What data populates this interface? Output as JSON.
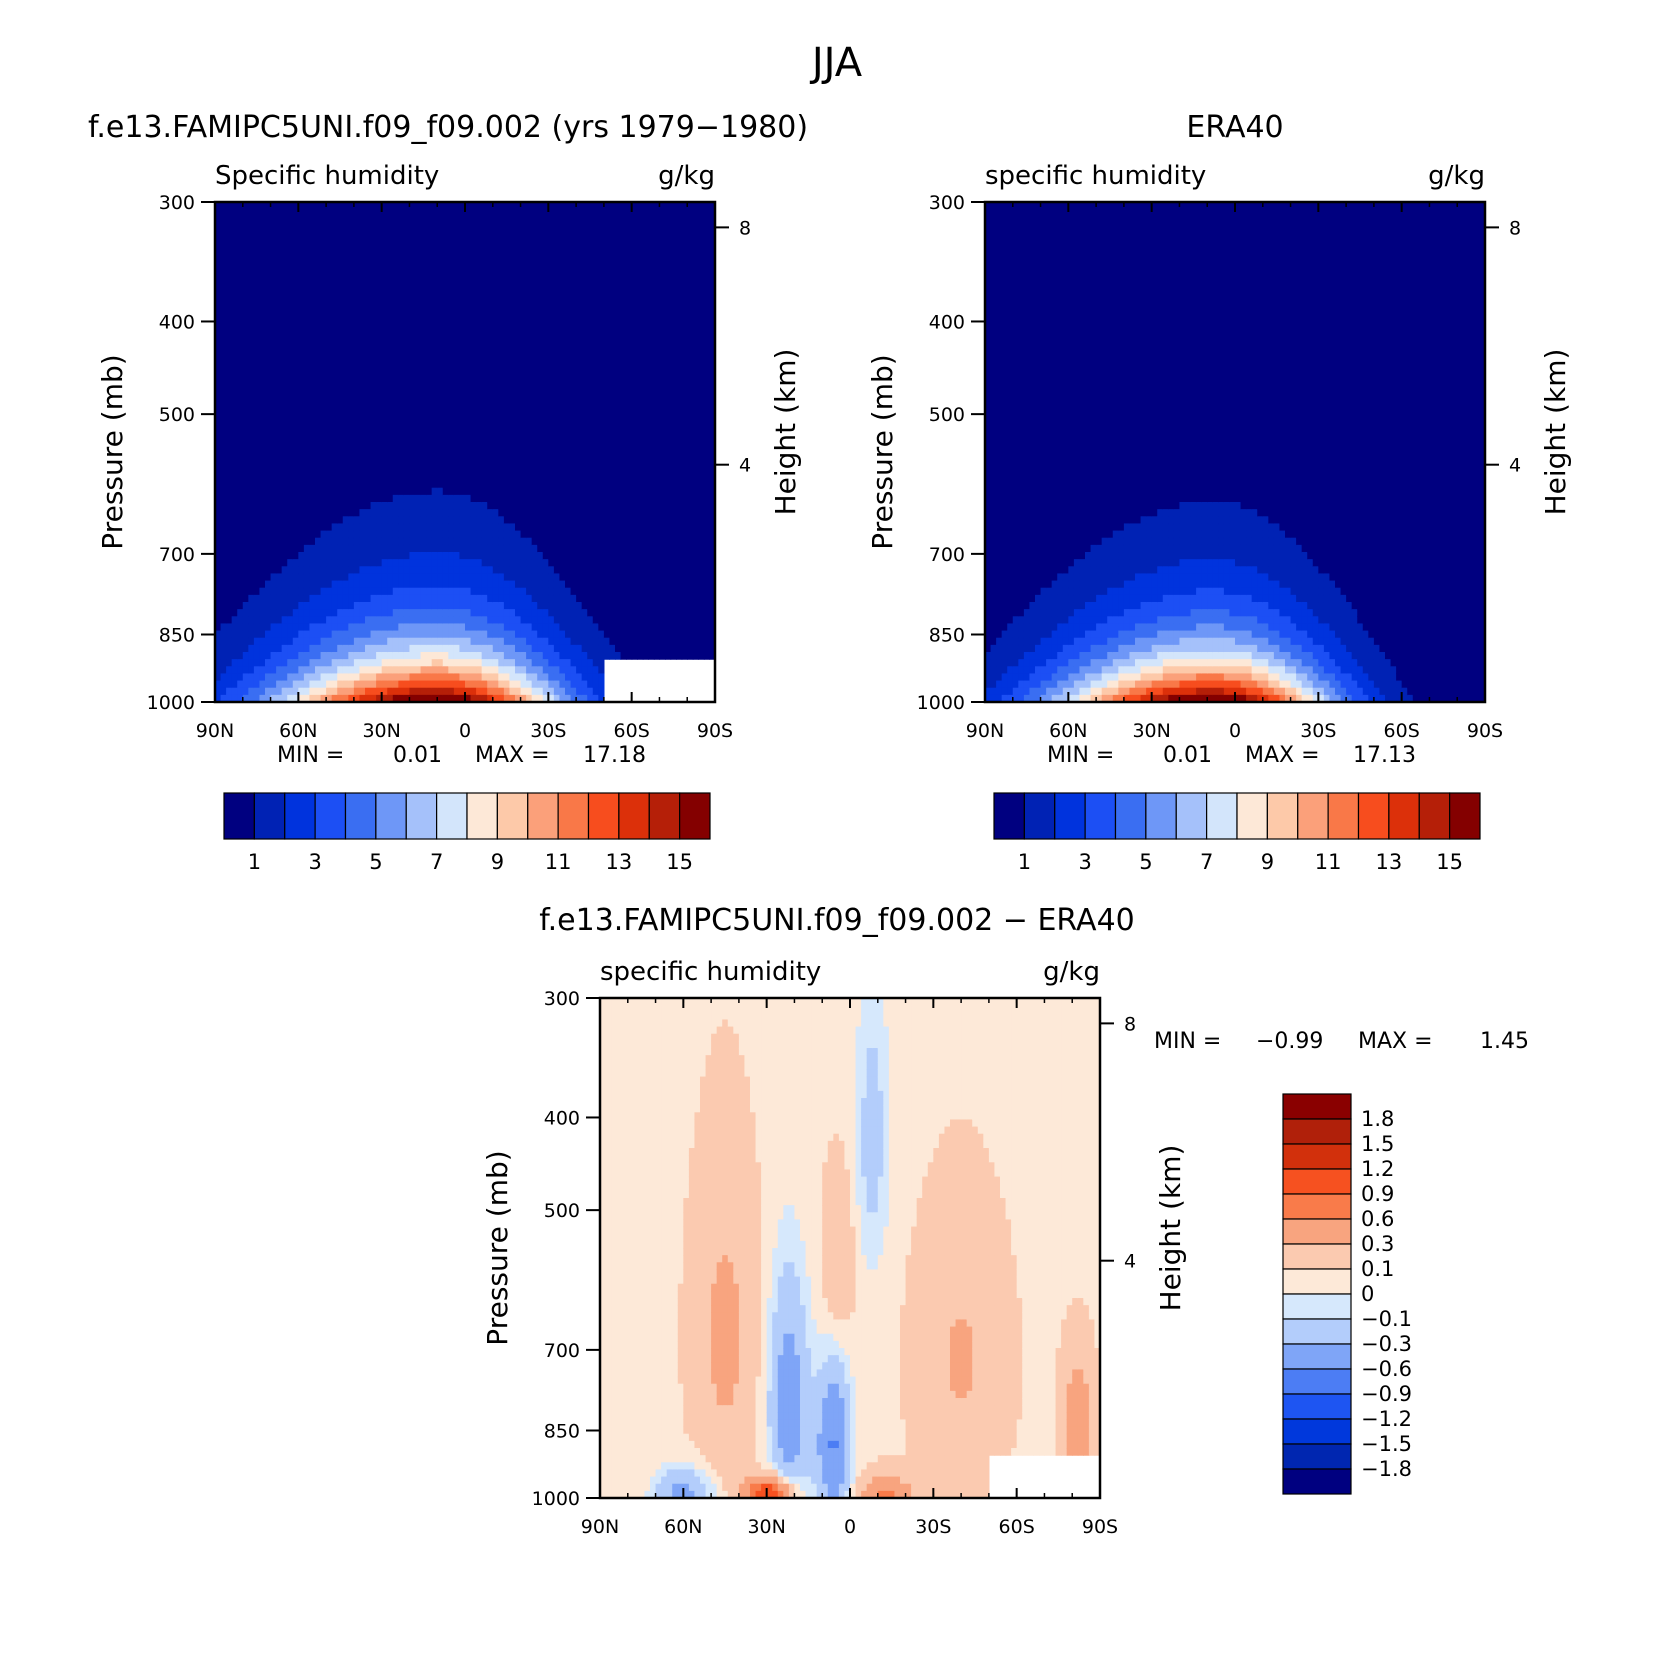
{
  "figure": {
    "season": "JJA"
  },
  "colors": {
    "humidity_scale": [
      "#000080",
      "#0022b4",
      "#0033dd",
      "#1c4ff4",
      "#3a6ef2",
      "#6e97f7",
      "#a5c1fa",
      "#d3e5fb",
      "#fde8d7",
      "#fdc9a9",
      "#fba07a",
      "#f97848",
      "#f74d1e",
      "#dc300a",
      "#b51f08",
      "#840000"
    ],
    "diff_scale": [
      "#000080",
      "#0026b0",
      "#0038dc",
      "#1e55f2",
      "#4c7df4",
      "#7fa5f7",
      "#b3cdfb",
      "#d6e8fc",
      "#fde9d8",
      "#fbcab0",
      "#f8a47f",
      "#f97b4a",
      "#f65120",
      "#d2300c",
      "#b0200a",
      "#8a0000"
    ]
  },
  "chart_data": [
    {
      "type": "heatmap",
      "panel": "model",
      "title": "f.e13.FAMIPC5UNI.f09_f09.002 (yrs 1979−1980)",
      "subtitle_left": "Specific humidity",
      "subtitle_right": "g/kg",
      "xlabel": "",
      "ylabel": "Pressure (mb)",
      "y2label": "Height (km)",
      "x_ticks": [
        "90N",
        "60N",
        "30N",
        "0",
        "30S",
        "60S",
        "90S"
      ],
      "x_range": [
        90,
        -90
      ],
      "y_ticks": [
        300,
        400,
        500,
        700,
        850,
        1000
      ],
      "y_range": [
        300,
        1000
      ],
      "y2_ticks": [
        8,
        4
      ],
      "min_label": "MIN =",
      "min_value": "0.01",
      "max_label": "MAX =",
      "max_value": "17.18",
      "colorbar_labels": [
        "1",
        "3",
        "5",
        "7",
        "9",
        "11",
        "13",
        "15"
      ],
      "colorbar_levels": [
        0,
        1,
        2,
        3,
        4,
        5,
        6,
        7,
        8,
        9,
        10,
        11,
        12,
        13,
        14,
        15,
        16
      ],
      "field": {
        "peak_lat": 10,
        "peak_value": 17.18,
        "south_limit_nearsurface": -60,
        "width_north": 60,
        "width_south": 45,
        "scale_height_mb": 140,
        "masked_below_topography_south_of": -50
      }
    },
    {
      "type": "heatmap",
      "panel": "observations",
      "title": "ERA40",
      "subtitle_left": "specific humidity",
      "subtitle_right": "g/kg",
      "xlabel": "",
      "ylabel": "Pressure (mb)",
      "y2label": "Height (km)",
      "x_ticks": [
        "90N",
        "60N",
        "30N",
        "0",
        "30S",
        "60S",
        "90S"
      ],
      "x_range": [
        90,
        -90
      ],
      "y_ticks": [
        300,
        400,
        500,
        700,
        850,
        1000
      ],
      "y_range": [
        300,
        1000
      ],
      "y2_ticks": [
        8,
        4
      ],
      "min_label": "MIN =",
      "min_value": "0.01",
      "max_label": "MAX =",
      "max_value": "17.13",
      "colorbar_labels": [
        "1",
        "3",
        "5",
        "7",
        "9",
        "11",
        "13",
        "15"
      ],
      "colorbar_levels": [
        0,
        1,
        2,
        3,
        4,
        5,
        6,
        7,
        8,
        9,
        10,
        11,
        12,
        13,
        14,
        15,
        16
      ],
      "field": {
        "peak_lat": 8,
        "peak_value": 17.13,
        "width_north": 58,
        "width_south": 43,
        "scale_height_mb": 135
      }
    },
    {
      "type": "heatmap",
      "panel": "difference",
      "title": "f.e13.FAMIPC5UNI.f09_f09.002 − ERA40",
      "subtitle_left": "specific humidity",
      "subtitle_right": "g/kg",
      "xlabel": "",
      "ylabel": "Pressure (mb)",
      "y2label": "Height (km)",
      "x_ticks": [
        "90N",
        "60N",
        "30N",
        "0",
        "30S",
        "60S",
        "90S"
      ],
      "x_range": [
        90,
        -90
      ],
      "y_ticks": [
        300,
        400,
        500,
        700,
        850,
        1000
      ],
      "y_range": [
        300,
        1000
      ],
      "y2_ticks": [
        8,
        4
      ],
      "min_label": "MIN =",
      "min_value": "−0.99",
      "max_label": "MAX =",
      "max_value": "1.45",
      "colorbar_labels": [
        "1.8",
        "1.5",
        "1.2",
        "0.9",
        "0.6",
        "0.3",
        "0.1",
        "0",
        "−0.1",
        "−0.3",
        "−0.6",
        "−0.9",
        "−1.2",
        "−1.5",
        "−1.8"
      ],
      "colorbar_levels": [
        -1.8,
        -1.5,
        -1.2,
        -0.9,
        -0.6,
        -0.3,
        -0.1,
        0,
        0.1,
        0.3,
        0.6,
        0.9,
        1.2,
        1.5,
        1.8
      ],
      "min": -0.99,
      "max": 1.45
    }
  ]
}
